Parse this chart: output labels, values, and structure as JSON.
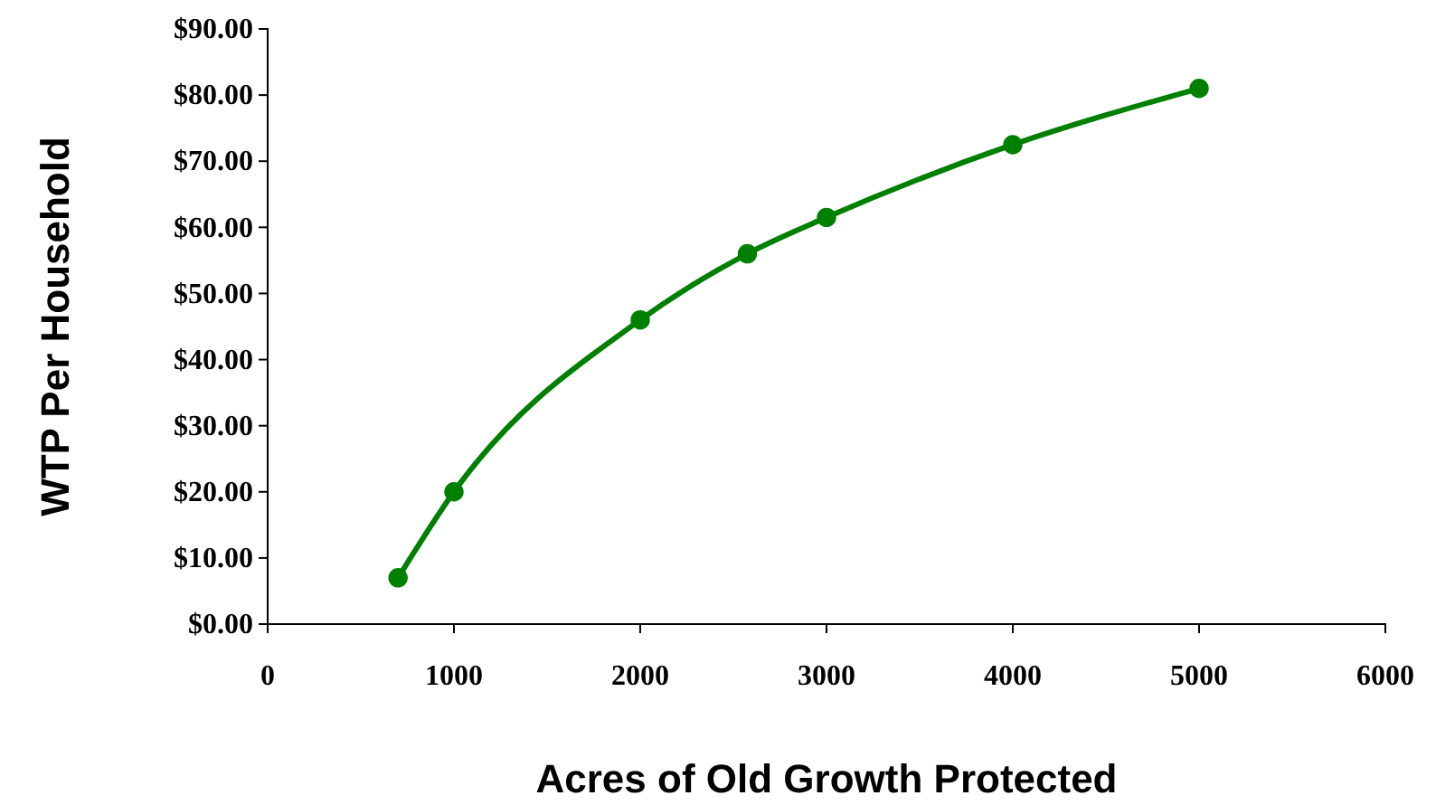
{
  "chart_data": {
    "type": "line",
    "xlabel": "Acres of Old Growth Protected",
    "ylabel": "WTP Per Household",
    "series": [
      {
        "color": "#008000",
        "x": [
          700,
          1000,
          2000,
          2575,
          3000,
          4000,
          5000
        ],
        "values": [
          7,
          20,
          46,
          56,
          61.5,
          72.5,
          81
        ]
      }
    ],
    "xlim": [
      0,
      6000
    ],
    "xticks": [
      0,
      1000,
      2000,
      3000,
      4000,
      5000,
      6000
    ],
    "ylim": [
      0,
      90
    ],
    "yticks": [
      {
        "value": 0,
        "label": "$0.00"
      },
      {
        "value": 10,
        "label": "$10.00"
      },
      {
        "value": 20,
        "label": "$20.00"
      },
      {
        "value": 30,
        "label": "$30.00"
      },
      {
        "value": 40,
        "label": "$40.00"
      },
      {
        "value": 50,
        "label": "$50.00"
      },
      {
        "value": 60,
        "label": "$60.00"
      },
      {
        "value": 70,
        "label": "$70.00"
      },
      {
        "value": 80,
        "label": "$80.00"
      },
      {
        "value": 90,
        "label": "$90.00"
      }
    ],
    "grid": false,
    "marker": "circle",
    "line_style": "solid"
  }
}
